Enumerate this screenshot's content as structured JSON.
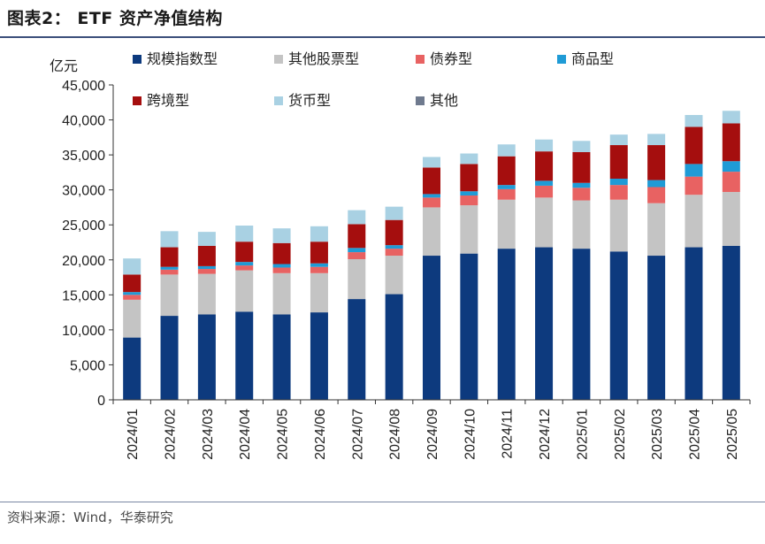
{
  "header": {
    "title": "图表2： ETF 资产净值结构"
  },
  "footer": {
    "source": "资料来源：Wind，华泰研究"
  },
  "chart_data": {
    "type": "bar",
    "stacked": true,
    "title": "ETF 资产净值结构",
    "unit": "亿元",
    "ylim": [
      0,
      45000
    ],
    "yticks": [
      0,
      5000,
      10000,
      15000,
      20000,
      25000,
      30000,
      35000,
      40000,
      45000
    ],
    "ytick_labels": [
      "0",
      "5,000",
      "10,000",
      "15,000",
      "20,000",
      "25,000",
      "30,000",
      "35,000",
      "40,000",
      "45,000"
    ],
    "categories": [
      "2024/01",
      "2024/02",
      "2024/03",
      "2024/04",
      "2024/05",
      "2024/06",
      "2024/07",
      "2024/08",
      "2024/09",
      "2024/10",
      "2024/11",
      "2024/12",
      "2025/01",
      "2025/02",
      "2025/03",
      "2025/04",
      "2025/05"
    ],
    "series": [
      {
        "name": "规模指数型",
        "color": "#0d3a7e",
        "values": [
          8900,
          12000,
          12200,
          12600,
          12200,
          12500,
          14400,
          15100,
          20600,
          20900,
          21600,
          21800,
          21600,
          21200,
          20600,
          21800,
          22000
        ]
      },
      {
        "name": "其他股票型",
        "color": "#c4c4c4",
        "values": [
          5400,
          5900,
          5800,
          5900,
          5900,
          5600,
          5700,
          5500,
          6900,
          6900,
          7000,
          7100,
          6900,
          7400,
          7500,
          7500,
          7700
        ]
      },
      {
        "name": "债券型",
        "color": "#e86262",
        "values": [
          700,
          700,
          700,
          700,
          800,
          900,
          1000,
          1000,
          1400,
          1400,
          1500,
          1700,
          1800,
          2100,
          2300,
          2600,
          2900
        ]
      },
      {
        "name": "商品型",
        "color": "#1f9bd6",
        "values": [
          400,
          400,
          400,
          500,
          500,
          500,
          600,
          500,
          500,
          600,
          600,
          700,
          700,
          900,
          1000,
          1800,
          1500
        ]
      },
      {
        "name": "跨境型",
        "color": "#a50e0e",
        "values": [
          2500,
          2800,
          2900,
          2900,
          3000,
          3100,
          3400,
          3600,
          3800,
          3900,
          4100,
          4200,
          4400,
          4800,
          5000,
          5300,
          5400
        ]
      },
      {
        "name": "货币型",
        "color": "#a9d1e3",
        "values": [
          2300,
          2300,
          2000,
          2300,
          2100,
          2200,
          2000,
          1900,
          1500,
          1500,
          1700,
          1700,
          1600,
          1500,
          1600,
          1700,
          1800
        ]
      },
      {
        "name": "其他",
        "color": "#6f7a8e",
        "values": [
          0,
          0,
          0,
          0,
          0,
          0,
          0,
          0,
          0,
          0,
          0,
          0,
          0,
          0,
          0,
          0,
          0
        ]
      }
    ]
  }
}
